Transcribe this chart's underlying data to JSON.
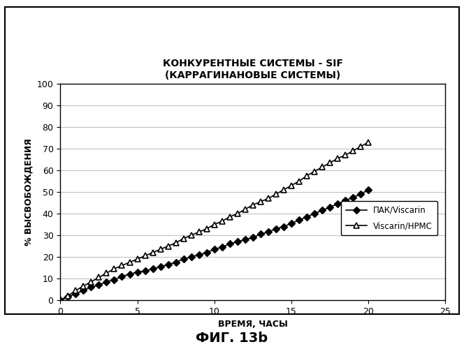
{
  "title_line1": "КОНКУРЕНТНЫЕ СИСТЕМЫ - SIF",
  "title_line2": "(КАРРАГИНАНОВЫЕ СИСТЕМЫ)",
  "xlabel": "ВРЕМЯ, ЧАСЫ",
  "ylabel": "% ВЫСВОБОЖДЕНИЯ",
  "caption": "ФИГ. 13b",
  "xlim": [
    0,
    25
  ],
  "ylim": [
    0,
    100
  ],
  "xticks": [
    0,
    5,
    10,
    15,
    20,
    25
  ],
  "yticks": [
    0,
    10,
    20,
    30,
    40,
    50,
    60,
    70,
    80,
    90,
    100
  ],
  "series1_label": "ПАК/Viscarin",
  "series2_label": "Viscarin/HPMC",
  "series1_x": [
    0,
    0.5,
    1.0,
    1.5,
    2.0,
    2.5,
    3.0,
    3.5,
    4.0,
    4.5,
    5.0,
    5.5,
    6.0,
    6.5,
    7.0,
    7.5,
    8.0,
    8.5,
    9.0,
    9.5,
    10.0,
    10.5,
    11.0,
    11.5,
    12.0,
    12.5,
    13.0,
    13.5,
    14.0,
    14.5,
    15.0,
    15.5,
    16.0,
    16.5,
    17.0,
    17.5,
    18.0,
    18.5,
    19.0,
    19.5,
    20.0
  ],
  "series1_y": [
    0,
    1.5,
    3.0,
    4.5,
    6.0,
    7.0,
    8.5,
    9.5,
    11.0,
    12.0,
    13.0,
    13.5,
    14.5,
    15.5,
    16.5,
    17.5,
    19.0,
    20.0,
    21.0,
    22.0,
    23.5,
    24.5,
    26.0,
    27.0,
    28.0,
    29.0,
    30.5,
    31.5,
    33.0,
    34.0,
    35.5,
    37.0,
    38.5,
    40.0,
    41.5,
    43.0,
    44.5,
    46.0,
    47.5,
    49.0,
    51.0
  ],
  "series2_x": [
    0,
    0.5,
    1.0,
    1.5,
    2.0,
    2.5,
    3.0,
    3.5,
    4.0,
    4.5,
    5.0,
    5.5,
    6.0,
    6.5,
    7.0,
    7.5,
    8.0,
    8.5,
    9.0,
    9.5,
    10.0,
    10.5,
    11.0,
    11.5,
    12.0,
    12.5,
    13.0,
    13.5,
    14.0,
    14.5,
    15.0,
    15.5,
    16.0,
    16.5,
    17.0,
    17.5,
    18.0,
    18.5,
    19.0,
    19.5,
    20.0
  ],
  "series2_y": [
    0,
    2.0,
    4.5,
    6.5,
    8.5,
    10.5,
    12.5,
    14.5,
    16.0,
    17.5,
    19.0,
    20.5,
    22.0,
    23.5,
    25.0,
    26.5,
    28.5,
    30.0,
    31.5,
    33.0,
    35.0,
    36.5,
    38.5,
    40.0,
    42.0,
    44.0,
    45.5,
    47.0,
    49.0,
    51.0,
    53.0,
    55.0,
    57.5,
    59.5,
    61.5,
    63.5,
    65.5,
    67.0,
    69.0,
    71.0,
    73.0
  ],
  "line_color": "#000000",
  "bg_color": "#ffffff",
  "plot_bg_color": "#ffffff",
  "fig_border_color": "#000000",
  "grid_color": "#bbbbbb"
}
